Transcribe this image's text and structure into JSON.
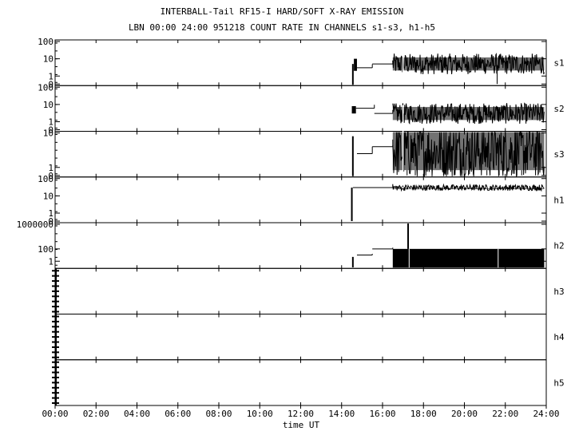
{
  "chart_data": {
    "type": "line",
    "title": "INTERBALL-Tail RF15-I HARD/SOFT X-RAY EMISSION",
    "subtitle": "LBN 00:00 24:00 951218  COUNT RATE IN CHANNELS s1-s3, h1-h5",
    "xlabel": "time UT",
    "x_ticks": [
      "00:00",
      "02:00",
      "04:00",
      "06:00",
      "08:00",
      "10:00",
      "12:00",
      "14:00",
      "16:00",
      "18:00",
      "20:00",
      "22:00",
      "24:00"
    ],
    "xlim_hours": [
      0,
      24
    ],
    "y_scale": "log",
    "panels": [
      {
        "name": "s1",
        "y_ticks": [
          "100",
          "10",
          "1",
          "0"
        ],
        "segments": [
          {
            "type": "spike",
            "x": 14.55,
            "y_low": 0.3,
            "y_high": 5
          },
          {
            "type": "burst",
            "x": [
              14.6,
              14.75
            ],
            "y": [
              2,
              10
            ]
          },
          {
            "type": "step",
            "x": [
              14.75,
              15.5
            ],
            "y": 3
          },
          {
            "type": "step",
            "x": [
              15.5,
              16.5
            ],
            "y": 5
          },
          {
            "type": "noise",
            "x": [
              16.5,
              23.9
            ],
            "center": 5,
            "spread": 4,
            "dips": [
              21.6
            ]
          }
        ]
      },
      {
        "name": "s2",
        "y_ticks": [
          "100",
          "10",
          "1",
          "0"
        ],
        "segments": [
          {
            "type": "burst",
            "x": [
              14.5,
              14.7
            ],
            "y": [
              3,
              8
            ]
          },
          {
            "type": "step",
            "x": [
              14.7,
              15.6
            ],
            "y": 6
          },
          {
            "type": "step",
            "x": [
              15.6,
              16.5
            ],
            "y": 3
          },
          {
            "type": "noise",
            "x": [
              16.5,
              23.9
            ],
            "center": 3,
            "spread": 4,
            "dips": []
          }
        ]
      },
      {
        "name": "s3",
        "y_ticks": [
          "10",
          "1",
          "0"
        ],
        "segments": [
          {
            "type": "spike",
            "x": 14.55,
            "y_low": 0.3,
            "y_high": 8
          },
          {
            "type": "step",
            "x": [
              14.75,
              15.5
            ],
            "y": 2.5
          },
          {
            "type": "step",
            "x": [
              15.5,
              16.5
            ],
            "y": 4
          },
          {
            "type": "noise",
            "x": [
              16.5,
              23.9
            ],
            "center": 3,
            "spread": 6,
            "dips": [
              17.2,
              17.6,
              19.0,
              19.5,
              20.2,
              21.1,
              21.7,
              22.3,
              22.8,
              23.6
            ]
          }
        ]
      },
      {
        "name": "h1",
        "y_ticks": [
          "100",
          "10",
          "1",
          "0"
        ],
        "segments": [
          {
            "type": "drop",
            "x": 14.5,
            "y_low": 0,
            "y_high": 30
          },
          {
            "type": "step",
            "x": [
              14.55,
              16.5
            ],
            "y": 30
          },
          {
            "type": "noise",
            "x": [
              16.5,
              23.9
            ],
            "center": 30,
            "spread": 1.5,
            "dips": []
          }
        ]
      },
      {
        "name": "h2",
        "y_ticks": [
          "1000000",
          "100",
          "1"
        ],
        "segments": [
          {
            "type": "spike",
            "x": 14.55,
            "y_low": 0.1,
            "y_high": 5
          },
          {
            "type": "step",
            "x": [
              14.75,
              15.5
            ],
            "y": 10
          },
          {
            "type": "step",
            "x": [
              15.5,
              16.5
            ],
            "y": 100
          },
          {
            "type": "block",
            "x": [
              16.5,
              23.9
            ],
            "y_low": 0.03,
            "y_high": 100
          },
          {
            "type": "spike",
            "x": 17.25,
            "y_low": 100,
            "y_high": 5000000
          }
        ]
      },
      {
        "name": "h3",
        "y_ticks": [],
        "segments": []
      },
      {
        "name": "h4",
        "y_ticks": [],
        "segments": []
      },
      {
        "name": "h5",
        "y_ticks": [],
        "segments": []
      }
    ]
  }
}
